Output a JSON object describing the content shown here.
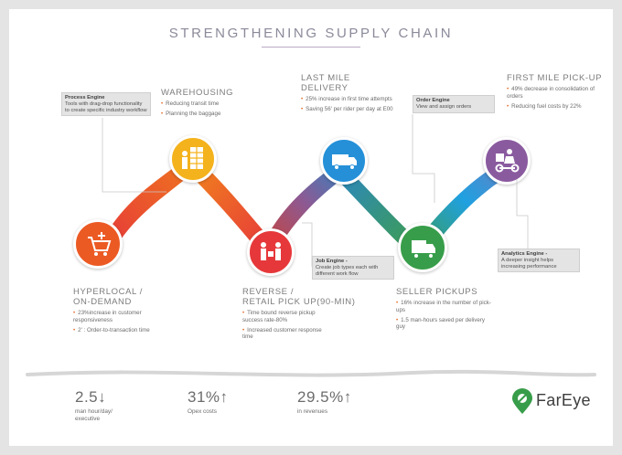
{
  "title": "STRENGTHENING SUPPLY CHAIN",
  "colors": {
    "orange": "#ec5a24",
    "red": "#e6383a",
    "purple": "#8c5a93",
    "blue": "#2590d8",
    "green": "#389d4a",
    "violet": "#8a5a9f",
    "gold": "#f4b21c"
  },
  "engines": {
    "process": {
      "title": "Process Engine",
      "text": "Tools with drag-drop functionality to create specific industry workflow"
    },
    "order": {
      "title": "Order Engine",
      "text": "View and assign orders"
    },
    "job": {
      "title": "Job Engine -",
      "text": "Create job types each with different work flow"
    },
    "analytics": {
      "title": "Analytics Engine -",
      "text": "A deeper insight helps increasing performance"
    }
  },
  "sections": {
    "warehousing": {
      "title": "WAREHOUSING",
      "bullets": [
        "Reducing transit time",
        "Planning the baggage"
      ]
    },
    "last_mile": {
      "title": "LAST MILE DELIVERY",
      "bullets": [
        "25% increase in first time attempts",
        "Saving 56' per rider per day at E00"
      ]
    },
    "first_mile": {
      "title": "FIRST MILE PICK-UP",
      "bullets": [
        "49% decrease in consolidation of orders",
        "Reducing fuel costs by 22%"
      ]
    },
    "hyperlocal": {
      "title_line1": "HYPERLOCAL /",
      "title_line2": "ON-DEMAND",
      "bullets": [
        "23%increase in customer responsiveness",
        "2' : Order-to-transaction time"
      ]
    },
    "reverse": {
      "title_line1": "REVERSE /",
      "title_line2": "RETAIL PICK UP(90-MIN)",
      "bullets": [
        "Time bound reverse pickup success rate-80%",
        "Increased customer response time"
      ]
    },
    "seller": {
      "title": "SELLER PICKUPS",
      "bullets": [
        "16% increase in the number of pick-ups",
        "1.5 man-hours saved per delivery guy"
      ]
    }
  },
  "icons": {
    "hyperlocal": "cart-plus-icon",
    "warehousing": "warehouse-worker-icon",
    "reverse": "people-exchange-icon",
    "last_mile": "delivery-truck-icon",
    "seller": "seller-van-icon",
    "first_mile": "pickup-motorbike-icon"
  },
  "stats": [
    {
      "value": "2.5",
      "arrow": "↓",
      "label_line1": "man hour/day/",
      "label_line2": "executive"
    },
    {
      "value": "31%",
      "arrow": "↑",
      "label_line1": "Opex costs",
      "label_line2": ""
    },
    {
      "value": "29.5%",
      "arrow": "↑",
      "label_line1": "in revenues",
      "label_line2": ""
    }
  ],
  "brand": {
    "name": "FarEye"
  }
}
